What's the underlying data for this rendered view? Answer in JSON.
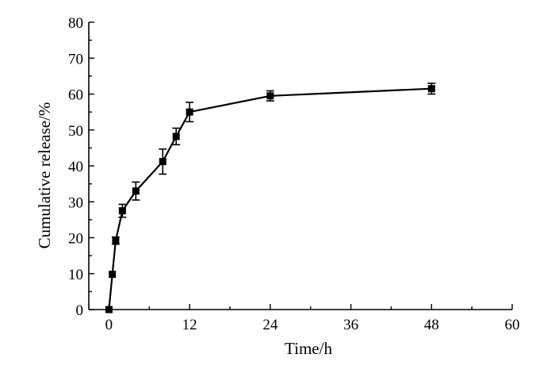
{
  "chart_data": {
    "type": "line",
    "title": "",
    "xlabel": "Time/h",
    "ylabel": "Cumulative release/%",
    "xlim": [
      -3,
      60
    ],
    "ylim": [
      0,
      80
    ],
    "xticks": [
      0,
      12,
      24,
      36,
      48,
      60
    ],
    "xtick_labels": [
      "0",
      "12",
      "24",
      "36",
      "48",
      "60"
    ],
    "yticks": [
      0,
      10,
      20,
      30,
      40,
      50,
      60,
      70,
      80
    ],
    "ytick_labels": [
      "0",
      "10",
      "20",
      "30",
      "40",
      "50",
      "60",
      "70",
      "80"
    ],
    "grid": false,
    "legend": "none",
    "series": [
      {
        "x": [
          0,
          0.5,
          1,
          2,
          4,
          8,
          10,
          12,
          24,
          48
        ],
        "y": [
          0,
          9.8,
          19.2,
          27.5,
          33.0,
          41.2,
          48.2,
          55.0,
          59.5,
          61.5
        ],
        "error": [
          0.3,
          0.4,
          1.0,
          1.8,
          2.5,
          3.5,
          2.3,
          2.7,
          1.4,
          1.5
        ],
        "color": "#000000",
        "marker": "square"
      }
    ]
  }
}
